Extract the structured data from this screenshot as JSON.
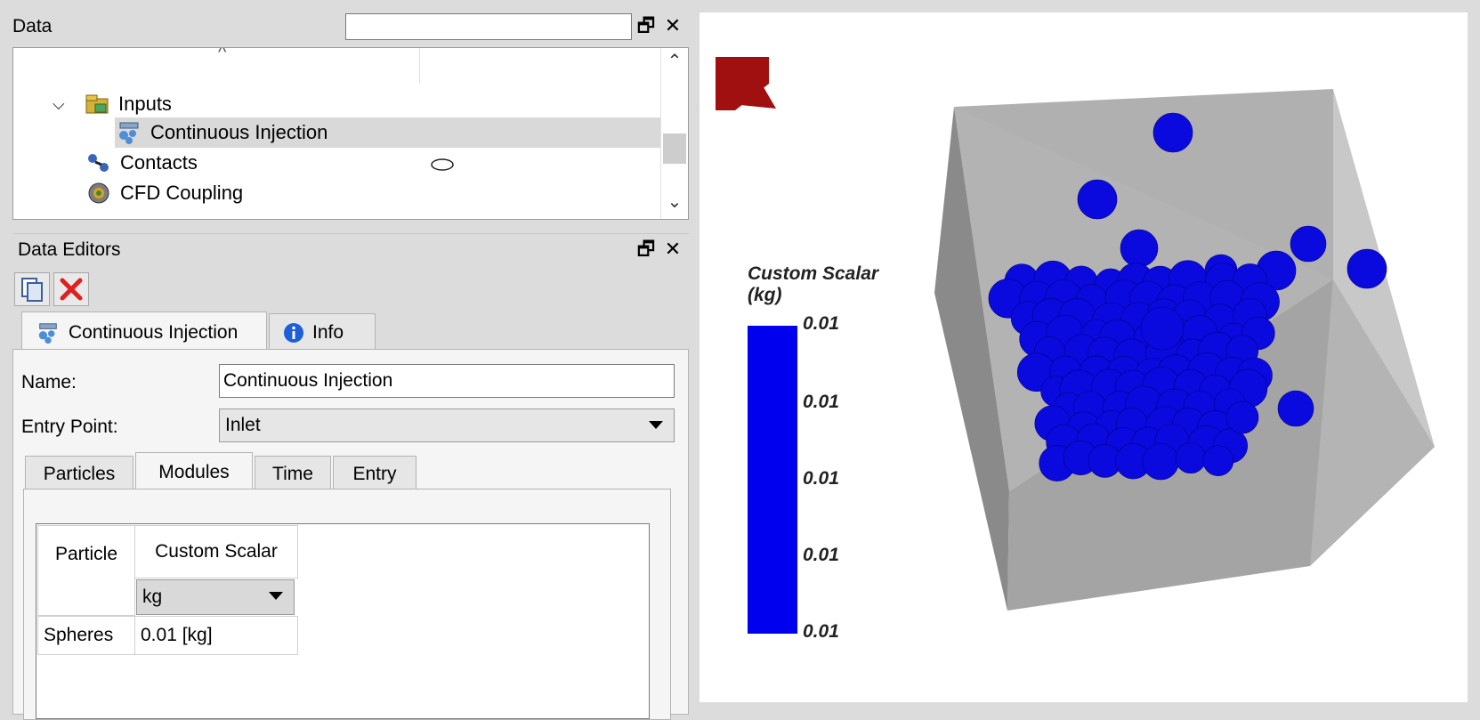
{
  "data_panel": {
    "title": "Data",
    "search_value": "",
    "tree": {
      "items": [
        {
          "label": "Inputs",
          "icon": "inputs-folder-icon"
        },
        {
          "label": "Continuous Injection",
          "icon": "injection-icon",
          "selected": true
        },
        {
          "label": "Contacts",
          "icon": "contacts-icon"
        },
        {
          "label": "CFD Coupling",
          "icon": "cfd-coupling-icon"
        }
      ]
    }
  },
  "editors_panel": {
    "title": "Data Editors",
    "tabs": [
      {
        "label": "Continuous Injection",
        "icon": "injection-icon"
      },
      {
        "label": "Info",
        "icon": "info-icon"
      }
    ],
    "name_label": "Name:",
    "name_value": "Continuous Injection",
    "entry_label": "Entry Point:",
    "entry_value": "Inlet",
    "subtabs": [
      "Particles",
      "Modules",
      "Time",
      "Entry"
    ],
    "modules": {
      "col_particle": "Particle",
      "col_scalar": "Custom Scalar",
      "unit": "kg",
      "rows": [
        {
          "particle": "Spheres",
          "value": "0.01 [kg]"
        }
      ]
    }
  },
  "viewport": {
    "legend": {
      "title_line1": "Custom Scalar",
      "title_line2": "(kg)",
      "color": "#0000ee",
      "ticks": [
        "0.01",
        "0.01",
        "0.01",
        "0.01",
        "0.01"
      ]
    },
    "logo_color": "#a01010",
    "particle_color": "#0a0adf",
    "box_color": "#a6a6a6"
  }
}
